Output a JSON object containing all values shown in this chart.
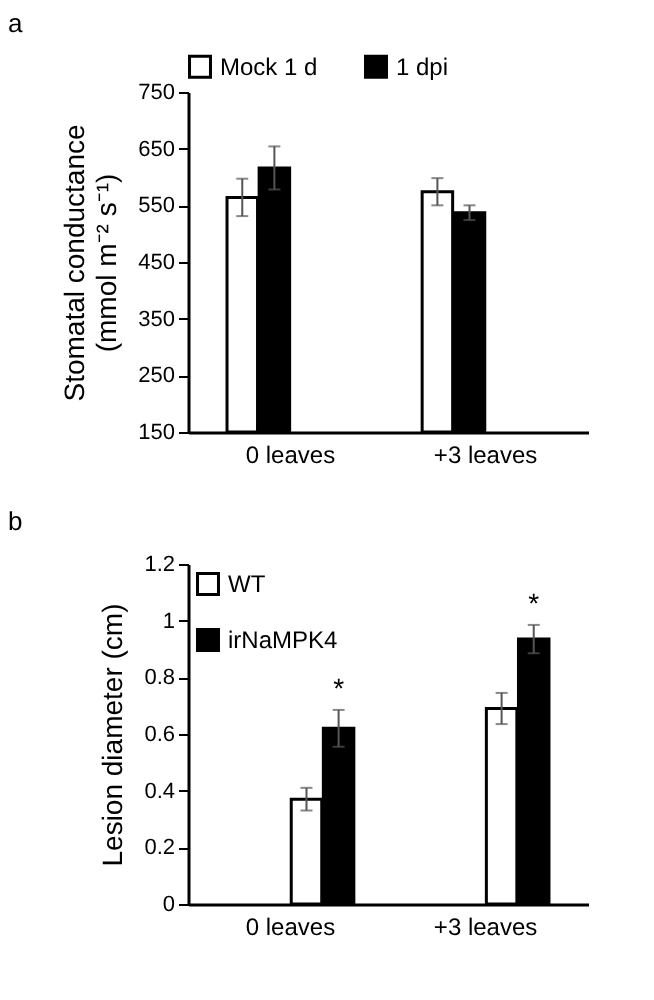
{
  "chart_data": [
    {
      "type": "bar",
      "annotations": [
        "a"
      ],
      "ylabel": "Stomatal conductance\n(mmol m⁻² s⁻¹)",
      "categories": [
        "0 leaves",
        "+3 leaves"
      ],
      "series": [
        {
          "name": "Mock 1 d",
          "color": "#ffffff",
          "values": [
            564,
            574
          ],
          "errors": [
            33,
            24
          ]
        },
        {
          "name": "1 dpi",
          "color": "#000000",
          "values": [
            616,
            537
          ],
          "errors": [
            38,
            13
          ]
        }
      ],
      "ylim": [
        150,
        750
      ],
      "yticks": [
        150,
        250,
        350,
        450,
        550,
        650,
        750
      ],
      "grid": false,
      "legend": "top"
    },
    {
      "type": "bar",
      "annotations": [
        "b",
        "*",
        "*"
      ],
      "ylabel": "Lesion diameter (cm)",
      "categories": [
        "0 leaves",
        "+3 leaves"
      ],
      "series": [
        {
          "name": "WT",
          "color": "#ffffff",
          "values": [
            0.37,
            0.69
          ],
          "errors": [
            0.04,
            0.055
          ]
        },
        {
          "name": "irNaMPK4",
          "color": "#000000",
          "values": [
            0.62,
            0.935
          ],
          "errors": [
            0.065,
            0.05
          ]
        }
      ],
      "ylim": [
        0,
        1.2
      ],
      "yticks": [
        0,
        0.2,
        0.4,
        0.6,
        0.8,
        1,
        1.2
      ],
      "grid": false,
      "legend": "top left"
    }
  ]
}
